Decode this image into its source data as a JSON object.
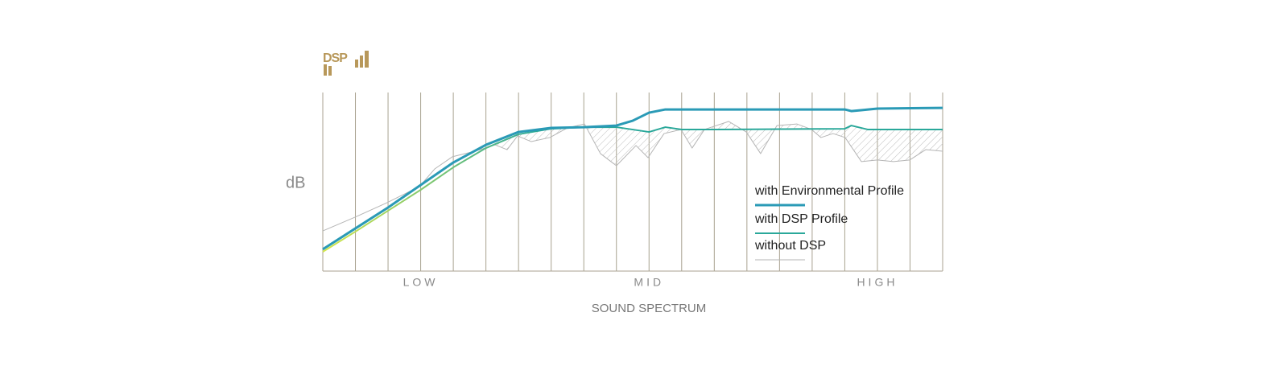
{
  "logo": "DSP",
  "chart_data": {
    "type": "line",
    "y_label": "dB",
    "x_label": "SOUND SPECTRUM",
    "xlim": [
      0,
      19
    ],
    "ylim": [
      0,
      100
    ],
    "xticks": [
      0,
      1,
      2,
      3,
      4,
      5,
      6,
      7,
      8,
      9,
      10,
      11,
      12,
      13,
      14,
      15,
      16,
      17,
      18,
      19
    ],
    "xlabels": [
      {
        "value": 3,
        "label": "LOW"
      },
      {
        "value": 10,
        "label": "MID"
      },
      {
        "value": 17,
        "label": "HIGH"
      }
    ],
    "grid": true,
    "legend": "right",
    "series": [
      {
        "name": "with Environmental Profile",
        "color": "#2a9ab6",
        "width": 3,
        "x": [
          0,
          1,
          2,
          3,
          4,
          5,
          6,
          7,
          8,
          9,
          9.5,
          10,
          10.5,
          12,
          16,
          16.2,
          16.5,
          17,
          19
        ],
        "values": [
          12.2,
          23.9,
          35.6,
          48.2,
          60.8,
          70.7,
          77.9,
          80.2,
          80.6,
          81.5,
          84.2,
          88.7,
          90.5,
          90.5,
          90.5,
          89.6,
          90.1,
          91.0,
          91.4
        ]
      },
      {
        "name": "with DSP Profile",
        "color": "#2aa89a",
        "color_start": "#d3e64a",
        "width": 2,
        "x": [
          0,
          1,
          2,
          3,
          4,
          5,
          6,
          7,
          8,
          9,
          10,
          10.5,
          11,
          12,
          16,
          16.2,
          16.7,
          19
        ],
        "values": [
          10.8,
          22.1,
          33.8,
          45.5,
          58.1,
          68.9,
          76.6,
          79.7,
          80.6,
          80.6,
          77.9,
          80.6,
          79.3,
          79.3,
          79.7,
          81.5,
          79.3,
          79.3
        ]
      },
      {
        "name": "without DSP",
        "color": "#b5b5b5",
        "width": 1,
        "x": [
          0,
          0.99,
          1.97,
          2.96,
          3.43,
          3.97,
          4.66,
          5.28,
          5.65,
          5.97,
          6.39,
          6.96,
          7.5,
          8.02,
          8.51,
          9.0,
          9.6,
          9.97,
          10.46,
          10.98,
          11.32,
          11.7,
          12.44,
          12.98,
          13.42,
          13.92,
          14.53,
          14.98,
          15.27,
          15.64,
          16.01,
          16.51,
          17.0,
          17.49,
          17.99,
          18.48,
          19
        ],
        "values": [
          22.5,
          30.2,
          38.3,
          47.3,
          57.2,
          64.0,
          67.1,
          70.7,
          68.0,
          75.7,
          72.5,
          74.8,
          80.2,
          82.4,
          65.8,
          59.0,
          70.3,
          63.5,
          77.0,
          79.3,
          68.9,
          79.3,
          83.8,
          77.9,
          65.8,
          81.5,
          82.4,
          79.3,
          74.8,
          77.0,
          74.8,
          61.3,
          62.2,
          61.3,
          62.2,
          68.0,
          67.1
        ]
      }
    ]
  }
}
